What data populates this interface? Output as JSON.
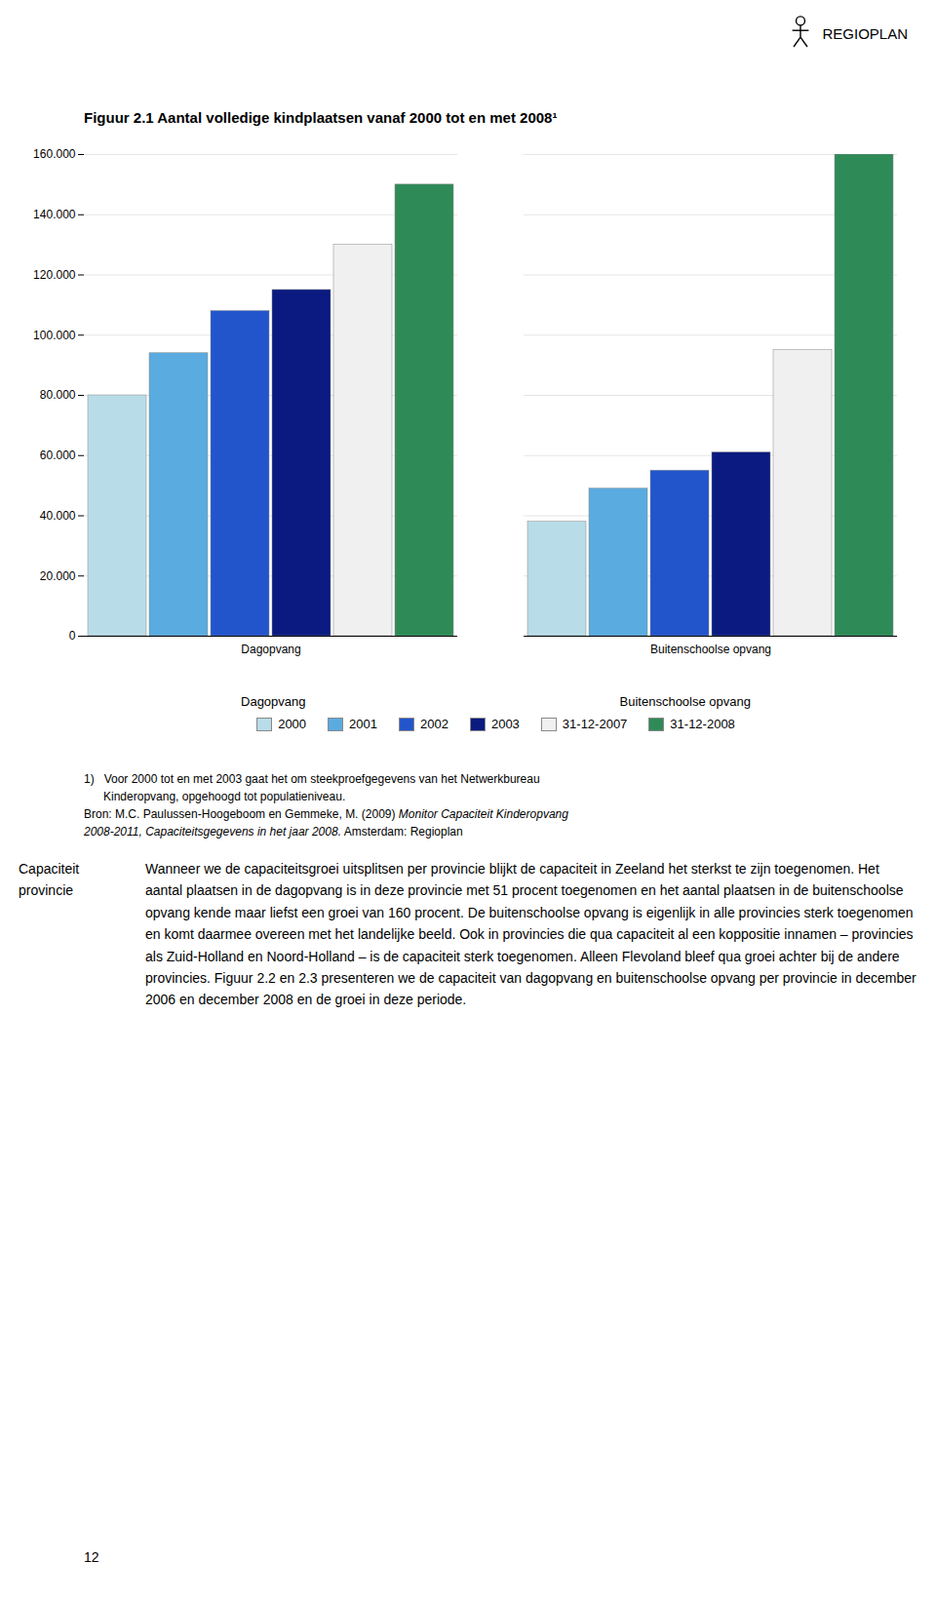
{
  "chart_data": {
    "type": "bar",
    "title": "Figuur 2.1 Aantal volledige kindplaatsen vanaf 2000 tot en met 2008¹",
    "categories": [
      "Dagopvang",
      "Buitenschoolse opvang"
    ],
    "series": [
      {
        "name": "2000",
        "color": "#b8dce8",
        "values": [
          80000,
          38000
        ]
      },
      {
        "name": "2001",
        "color": "#5aabe0",
        "values": [
          94000,
          49000
        ]
      },
      {
        "name": "2002",
        "color": "#2255cc",
        "values": [
          108000,
          55000
        ]
      },
      {
        "name": "2003",
        "color": "#0a1a80",
        "values": [
          115000,
          61000
        ]
      },
      {
        "name": "31-12-2007",
        "color": "#f0f0f0",
        "values": [
          130000,
          95000
        ]
      },
      {
        "name": "31-12-2008",
        "color": "#2e8b57",
        "values": [
          150000,
          160000
        ]
      }
    ],
    "ylim": [
      0,
      160000
    ],
    "yticks": [
      0,
      {
        "value": 20000,
        "label": "20.000"
      },
      {
        "value": 40000,
        "label": "40.000"
      },
      {
        "value": 60000,
        "label": "60.000"
      },
      {
        "value": 80000,
        "label": "80.000"
      },
      {
        "value": 100000,
        "label": "100.000"
      },
      {
        "value": 120000,
        "label": "120.000"
      },
      {
        "value": 140000,
        "label": "140.000"
      },
      {
        "value": 160000,
        "label": "160.000"
      }
    ],
    "grid": true,
    "legend": "bottom"
  },
  "header": "REGIOPLAN",
  "footnotes": [
    [
      {
        "text": "1)   Voor 2000 tot en met 2003 gaat het om steekproefgegevens van het Netwerkbureau",
        "italic": false
      }
    ],
    [
      {
        "text": "      Kinderopvang, opgehoogd tot populatieniveau.",
        "italic": false
      }
    ],
    [
      {
        "text": "Bron: M.C. Paulussen-Hoogeboom en Gemmeke, M. (2009) ",
        "italic": false
      },
      {
        "text": "Monitor Capaciteit Kinderopvang",
        "italic": true
      }
    ],
    [
      {
        "text": "2008-2011, Capaciteitsgegevens in het jaar 2008.",
        "italic": true
      },
      {
        "text": " Amsterdam: Regioplan",
        "italic": false
      }
    ]
  ],
  "sidebar": [
    "Capaciteit",
    "provincie"
  ],
  "body_text": "Wanneer we de capaciteitsgroei uitsplitsen per provincie blijkt de capaciteit in Zeeland het sterkst te zijn toegenomen. Het aantal plaatsen in de dagopvang is in deze provincie met 51 procent toegenomen en het aantal plaatsen in de buitenschoolse opvang kende maar liefst een groei van 160 procent. De buitenschoolse opvang is eigenlijk in alle provincies sterk toegenomen en komt daarmee overeen met het landelijke beeld. Ook in provincies die qua capaciteit al een koppositie innamen – provincies als Zuid-Holland en Noord-Holland – is de capaciteit sterk toegenomen. Alleen Flevoland bleef qua groei achter bij de andere provincies. Figuur 2.2 en 2.3 presenteren we de capaciteit van dagopvang en buitenschoolse opvang per provincie in december 2006 en december 2008 en de groei in deze periode.",
  "page_number": "12"
}
